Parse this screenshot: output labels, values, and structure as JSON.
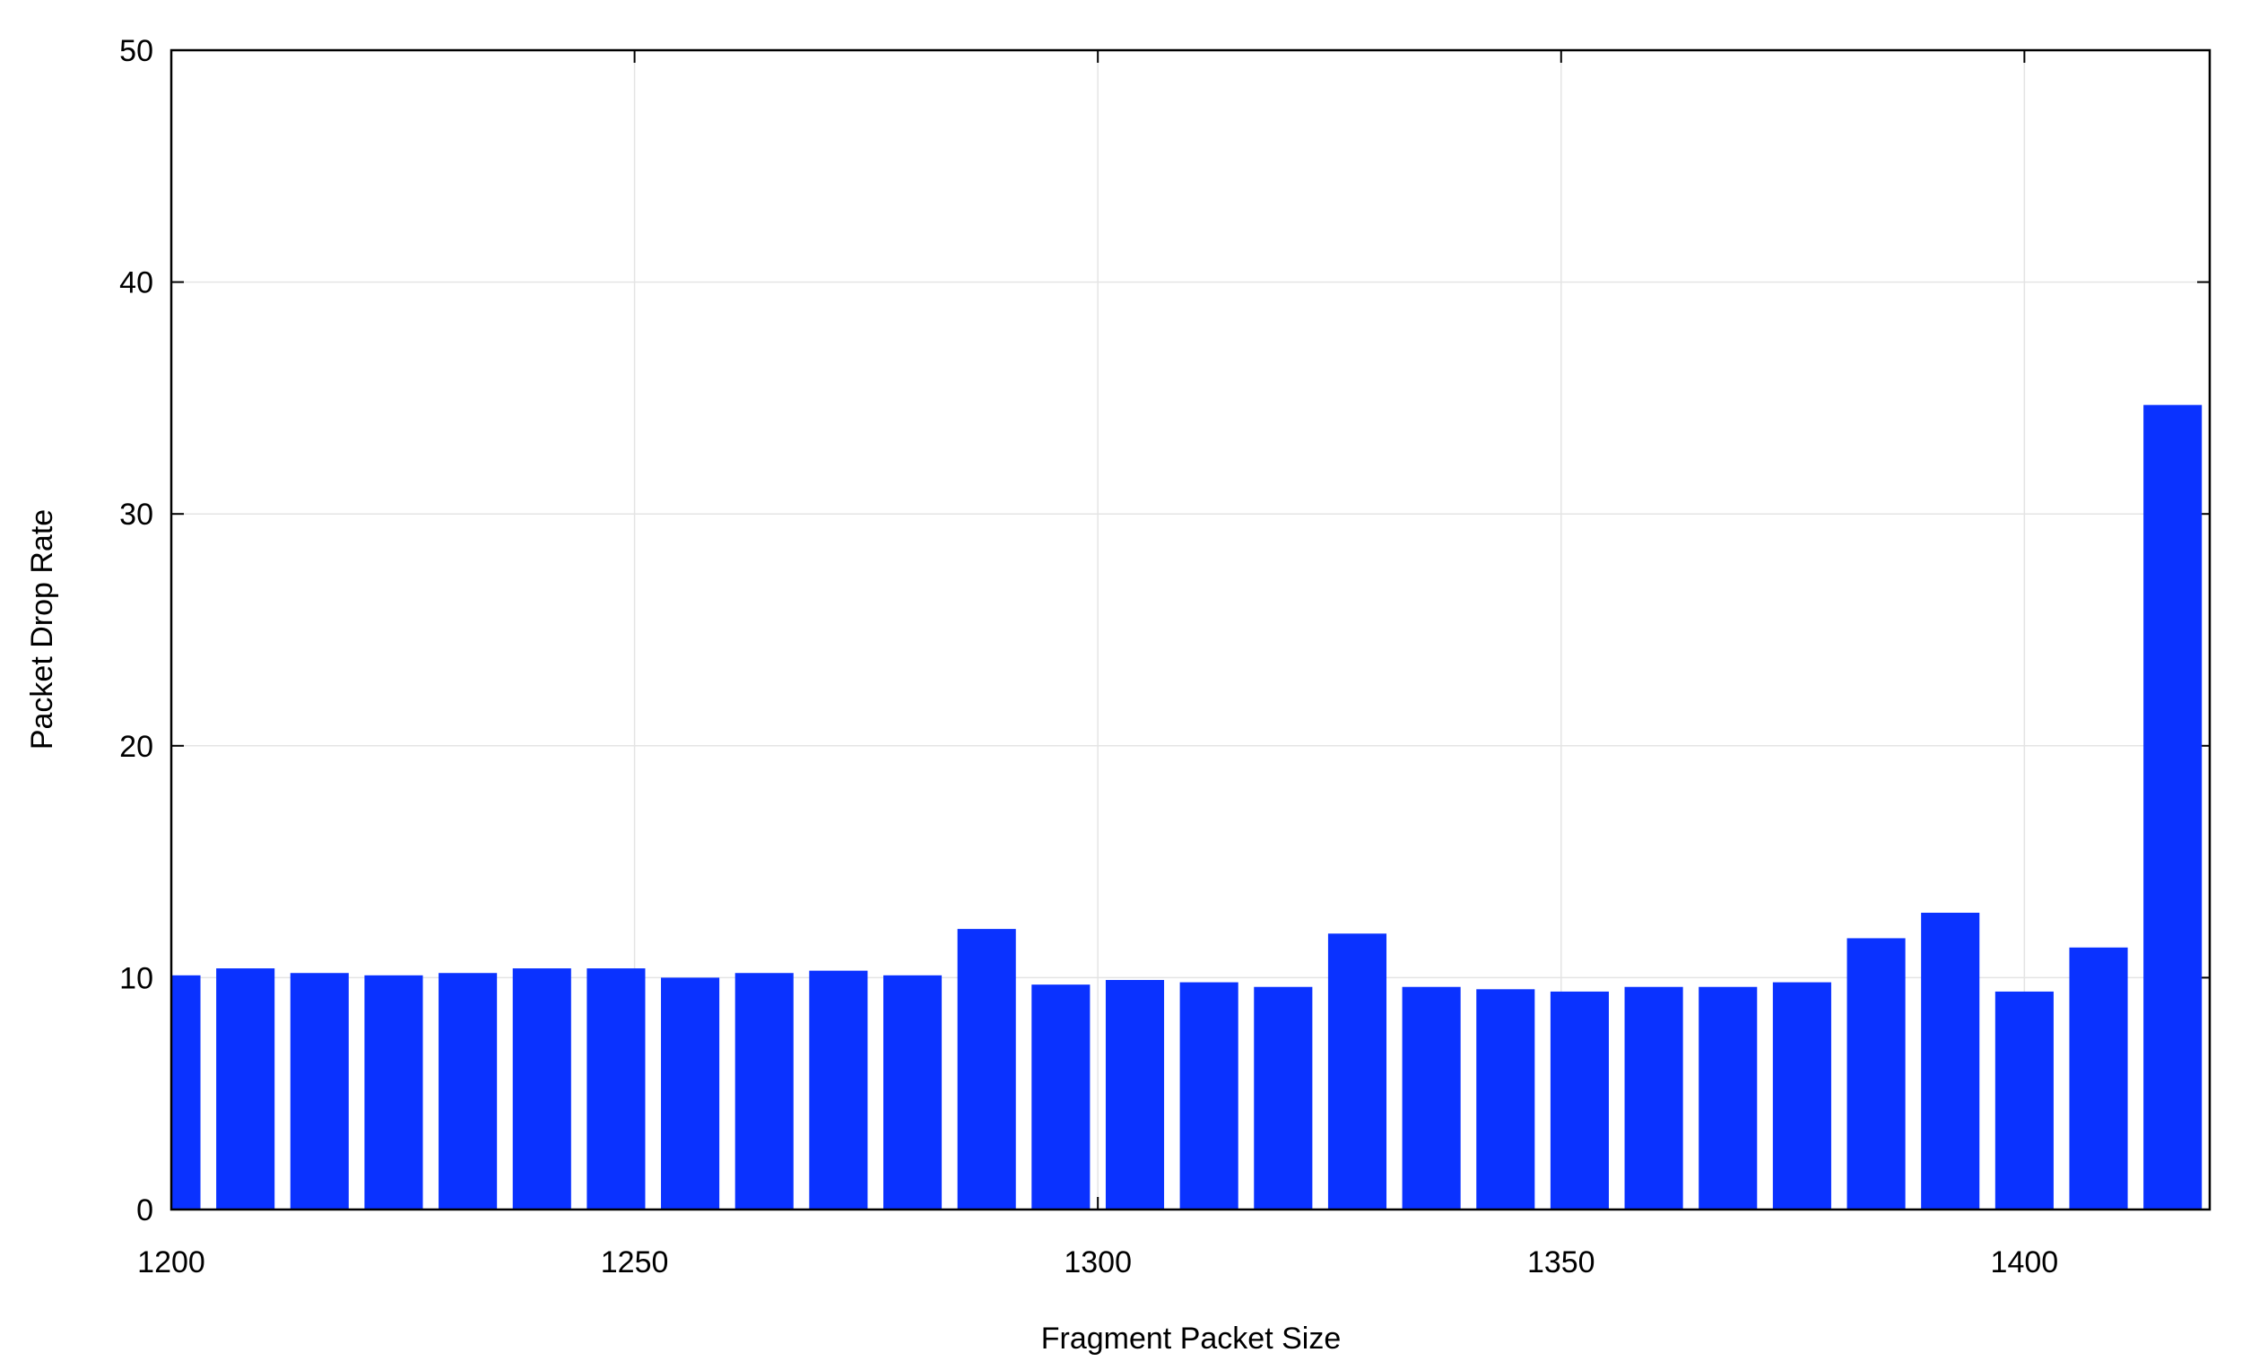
{
  "chart_data": {
    "type": "bar",
    "x_label": "Fragment Packet Size",
    "y_label": "Packet Drop Rate",
    "x": [
      1200,
      1208,
      1216,
      1224,
      1232,
      1240,
      1248,
      1256,
      1264,
      1272,
      1280,
      1288,
      1296,
      1304,
      1312,
      1320,
      1328,
      1336,
      1344,
      1352,
      1360,
      1368,
      1376,
      1384,
      1392,
      1400,
      1408,
      1416
    ],
    "values": [
      10.1,
      10.4,
      10.2,
      10.1,
      10.2,
      10.4,
      10.4,
      10.0,
      10.2,
      10.3,
      10.1,
      12.1,
      9.7,
      9.9,
      9.8,
      9.6,
      11.9,
      9.6,
      9.5,
      9.4,
      9.6,
      9.6,
      9.8,
      11.7,
      12.8,
      9.4,
      11.3,
      34.7
    ],
    "color": "#0a32ff",
    "xlim": [
      1200,
      1420
    ],
    "ylim": [
      0,
      50
    ],
    "xticks": [
      1200,
      1250,
      1300,
      1350,
      1400
    ],
    "yticks": [
      0,
      10,
      20,
      30,
      40,
      50
    ],
    "grid": true
  }
}
